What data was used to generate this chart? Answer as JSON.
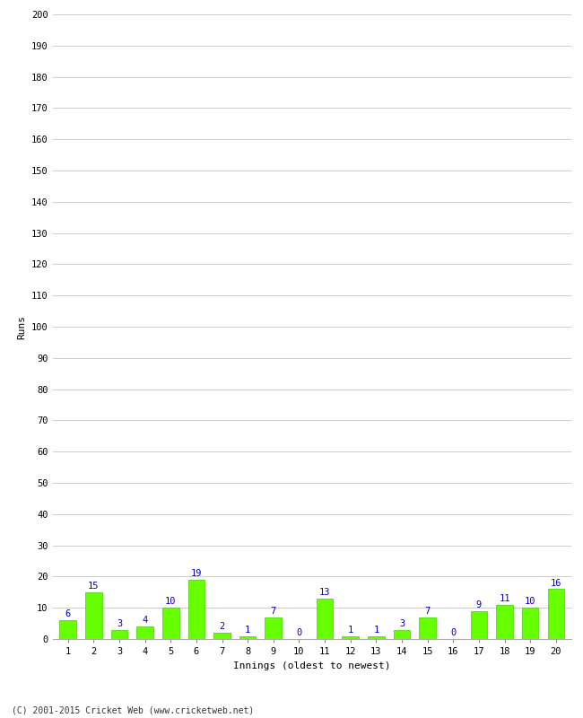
{
  "innings": [
    1,
    2,
    3,
    4,
    5,
    6,
    7,
    8,
    9,
    10,
    11,
    12,
    13,
    14,
    15,
    16,
    17,
    18,
    19,
    20
  ],
  "runs": [
    6,
    15,
    3,
    4,
    10,
    19,
    2,
    1,
    7,
    0,
    13,
    1,
    1,
    3,
    7,
    0,
    9,
    11,
    10,
    16
  ],
  "bar_color": "#66ff00",
  "bar_edge_color": "#44cc00",
  "label_color": "#0000cc",
  "xlabel": "Innings (oldest to newest)",
  "ylabel": "Runs",
  "ylim": [
    0,
    200
  ],
  "ytick_step": 10,
  "footer": "(C) 2001-2015 Cricket Web (www.cricketweb.net)",
  "background_color": "#ffffff",
  "grid_color": "#cccccc",
  "label_fontsize": 7.5,
  "axis_label_fontsize": 8,
  "tick_fontsize": 7.5,
  "footer_fontsize": 7
}
